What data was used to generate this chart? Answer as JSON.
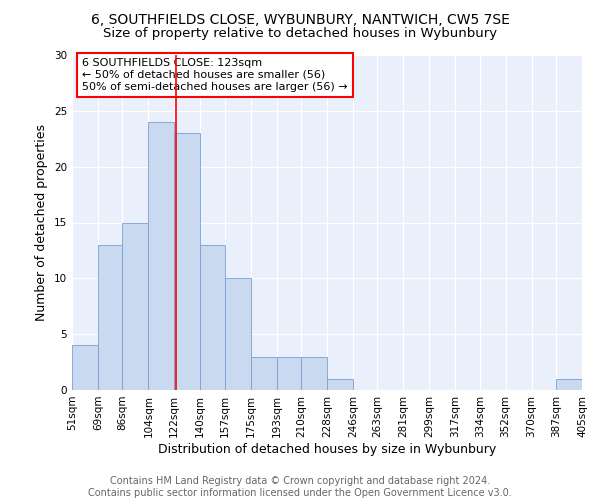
{
  "title": "6, SOUTHFIELDS CLOSE, WYBUNBURY, NANTWICH, CW5 7SE",
  "subtitle": "Size of property relative to detached houses in Wybunbury",
  "xlabel": "Distribution of detached houses by size in Wybunbury",
  "ylabel": "Number of detached properties",
  "bin_labels": [
    "51sqm",
    "69sqm",
    "86sqm",
    "104sqm",
    "122sqm",
    "140sqm",
    "157sqm",
    "175sqm",
    "193sqm",
    "210sqm",
    "228sqm",
    "246sqm",
    "263sqm",
    "281sqm",
    "299sqm",
    "317sqm",
    "334sqm",
    "352sqm",
    "370sqm",
    "387sqm",
    "405sqm"
  ],
  "bin_values": [
    4,
    13,
    15,
    24,
    23,
    13,
    10,
    3,
    3,
    3,
    1,
    0,
    0,
    0,
    0,
    0,
    0,
    0,
    0,
    1,
    0
  ],
  "bar_color": "#c9d9f0",
  "bar_edge_color": "#7a9fd4",
  "property_line_x": 123,
  "bin_edges": [
    51,
    69,
    86,
    104,
    122,
    140,
    157,
    175,
    193,
    210,
    228,
    246,
    263,
    281,
    299,
    317,
    334,
    352,
    370,
    387,
    405
  ],
  "annotation_text": "6 SOUTHFIELDS CLOSE: 123sqm\n← 50% of detached houses are smaller (56)\n50% of semi-detached houses are larger (56) →",
  "annotation_box_color": "white",
  "annotation_box_edge": "red",
  "red_line_color": "red",
  "ylim": [
    0,
    30
  ],
  "yticks": [
    0,
    5,
    10,
    15,
    20,
    25,
    30
  ],
  "footer_text": "Contains HM Land Registry data © Crown copyright and database right 2024.\nContains public sector information licensed under the Open Government Licence v3.0.",
  "background_color": "#eaf0fb",
  "grid_color": "white",
  "title_fontsize": 10,
  "subtitle_fontsize": 9.5,
  "axis_label_fontsize": 9,
  "tick_fontsize": 7.5,
  "annotation_fontsize": 8,
  "footer_fontsize": 7
}
